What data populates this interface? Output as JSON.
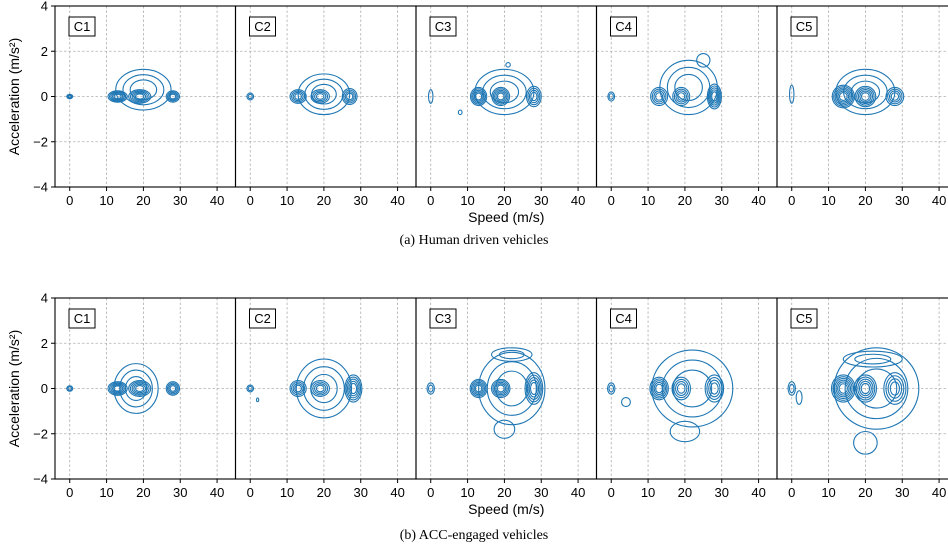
{
  "chart_data": {
    "type": "contour",
    "xlabel": "Speed (m/s)",
    "ylabel": "Acceleration (m/s²)",
    "xlim": [
      -4,
      45
    ],
    "ylim": [
      -4,
      4
    ],
    "xticks": [
      0,
      10,
      20,
      30,
      40
    ],
    "yticks": [
      -4,
      -2,
      0,
      2,
      4
    ],
    "grid": true,
    "line_color": "#1f77b4",
    "rows": [
      {
        "caption": "(a) Human driven vehicles",
        "panels": [
          {
            "label": "C1",
            "modes": [
              {
                "x": 0,
                "y": 0,
                "sx": 0.8,
                "sy": 0.1,
                "n": 3
              },
              {
                "x": 13,
                "y": 0,
                "sx": 2.6,
                "sy": 0.25,
                "n": 5
              },
              {
                "x": 19,
                "y": 0,
                "sx": 3.0,
                "sy": 0.3,
                "n": 5
              },
              {
                "x": 28,
                "y": 0,
                "sx": 1.8,
                "sy": 0.25,
                "n": 4
              },
              {
                "x": 20,
                "y": 0.3,
                "sx": 7.5,
                "sy": 0.9,
                "n": 3
              }
            ]
          },
          {
            "label": "C2",
            "modes": [
              {
                "x": 0,
                "y": 0,
                "sx": 0.9,
                "sy": 0.15,
                "n": 2
              },
              {
                "x": 13,
                "y": 0,
                "sx": 2.2,
                "sy": 0.3,
                "n": 4
              },
              {
                "x": 19,
                "y": 0,
                "sx": 2.5,
                "sy": 0.3,
                "n": 4
              },
              {
                "x": 27,
                "y": 0,
                "sx": 2.0,
                "sy": 0.35,
                "n": 4
              },
              {
                "x": 20,
                "y": 0.1,
                "sx": 7.0,
                "sy": 0.9,
                "n": 3
              }
            ]
          },
          {
            "label": "C3",
            "modes": [
              {
                "x": 0,
                "y": 0,
                "sx": 0.6,
                "sy": 0.3,
                "n": 1
              },
              {
                "x": 13,
                "y": 0,
                "sx": 2.2,
                "sy": 0.4,
                "n": 5
              },
              {
                "x": 19,
                "y": 0,
                "sx": 2.4,
                "sy": 0.4,
                "n": 5
              },
              {
                "x": 28,
                "y": 0,
                "sx": 2.0,
                "sy": 0.45,
                "n": 4
              },
              {
                "x": 20,
                "y": 0.2,
                "sx": 8.0,
                "sy": 1.0,
                "n": 3
              },
              {
                "x": 21,
                "y": 1.4,
                "sx": 0.6,
                "sy": 0.1,
                "n": 1
              },
              {
                "x": 8,
                "y": -0.7,
                "sx": 0.5,
                "sy": 0.1,
                "n": 1
              }
            ]
          },
          {
            "label": "C4",
            "modes": [
              {
                "x": 0,
                "y": 0,
                "sx": 0.9,
                "sy": 0.2,
                "n": 2
              },
              {
                "x": 13,
                "y": 0,
                "sx": 2.3,
                "sy": 0.4,
                "n": 4
              },
              {
                "x": 19,
                "y": 0,
                "sx": 2.3,
                "sy": 0.4,
                "n": 4
              },
              {
                "x": 28,
                "y": 0,
                "sx": 1.9,
                "sy": 0.55,
                "n": 5
              },
              {
                "x": 21,
                "y": 0.4,
                "sx": 7.8,
                "sy": 1.2,
                "n": 3
              },
              {
                "x": 25,
                "y": 1.6,
                "sx": 1.8,
                "sy": 0.3,
                "n": 1
              }
            ]
          },
          {
            "label": "C5",
            "modes": [
              {
                "x": 0,
                "y": 0.1,
                "sx": 0.6,
                "sy": 0.4,
                "n": 1
              },
              {
                "x": 14,
                "y": 0,
                "sx": 3.0,
                "sy": 0.5,
                "n": 6
              },
              {
                "x": 20,
                "y": 0,
                "sx": 2.8,
                "sy": 0.45,
                "n": 5
              },
              {
                "x": 28,
                "y": 0,
                "sx": 2.4,
                "sy": 0.4,
                "n": 4
              },
              {
                "x": 20,
                "y": 0.2,
                "sx": 8.0,
                "sy": 1.0,
                "n": 3
              }
            ]
          }
        ]
      },
      {
        "caption": "(b) ACC-engaged vehicles",
        "panels": [
          {
            "label": "C1",
            "modes": [
              {
                "x": 0,
                "y": 0,
                "sx": 0.8,
                "sy": 0.12,
                "n": 2
              },
              {
                "x": 13,
                "y": 0,
                "sx": 2.6,
                "sy": 0.3,
                "n": 5
              },
              {
                "x": 19,
                "y": 0,
                "sx": 3.0,
                "sy": 0.35,
                "n": 5
              },
              {
                "x": 28,
                "y": 0,
                "sx": 1.8,
                "sy": 0.3,
                "n": 4
              },
              {
                "x": 18,
                "y": 0.0,
                "sx": 6.0,
                "sy": 1.1,
                "n": 3
              }
            ]
          },
          {
            "label": "C2",
            "modes": [
              {
                "x": 0,
                "y": 0,
                "sx": 0.9,
                "sy": 0.15,
                "n": 2
              },
              {
                "x": 13,
                "y": 0,
                "sx": 2.2,
                "sy": 0.35,
                "n": 4
              },
              {
                "x": 19,
                "y": 0,
                "sx": 2.5,
                "sy": 0.35,
                "n": 4
              },
              {
                "x": 28,
                "y": 0,
                "sx": 2.3,
                "sy": 0.6,
                "n": 5
              },
              {
                "x": 20,
                "y": 0.0,
                "sx": 7.5,
                "sy": 1.3,
                "n": 3
              },
              {
                "x": 2,
                "y": -0.5,
                "sx": 0.3,
                "sy": 0.08,
                "n": 1
              }
            ]
          },
          {
            "label": "C3",
            "modes": [
              {
                "x": 0,
                "y": 0,
                "sx": 1.0,
                "sy": 0.25,
                "n": 2
              },
              {
                "x": 13,
                "y": 0,
                "sx": 2.3,
                "sy": 0.4,
                "n": 5
              },
              {
                "x": 19,
                "y": 0,
                "sx": 2.5,
                "sy": 0.4,
                "n": 5
              },
              {
                "x": 28,
                "y": 0,
                "sx": 2.4,
                "sy": 0.7,
                "n": 5
              },
              {
                "x": 22,
                "y": 0.0,
                "sx": 9.0,
                "sy": 1.6,
                "n": 3
              },
              {
                "x": 22,
                "y": 1.5,
                "sx": 5.5,
                "sy": 0.3,
                "n": 2
              },
              {
                "x": 20,
                "y": -1.8,
                "sx": 2.8,
                "sy": 0.4,
                "n": 1
              }
            ]
          },
          {
            "label": "C4",
            "modes": [
              {
                "x": 0,
                "y": 0,
                "sx": 1.0,
                "sy": 0.25,
                "n": 2
              },
              {
                "x": 13,
                "y": 0,
                "sx": 2.5,
                "sy": 0.5,
                "n": 5
              },
              {
                "x": 19,
                "y": 0,
                "sx": 2.5,
                "sy": 0.5,
                "n": 4
              },
              {
                "x": 28,
                "y": 0,
                "sx": 2.5,
                "sy": 0.6,
                "n": 4
              },
              {
                "x": 22,
                "y": 0.0,
                "sx": 11.0,
                "sy": 1.7,
                "n": 3
              },
              {
                "x": 20,
                "y": -1.9,
                "sx": 4.0,
                "sy": 0.45,
                "n": 1
              },
              {
                "x": 4,
                "y": -0.6,
                "sx": 1.2,
                "sy": 0.2,
                "n": 1
              }
            ]
          },
          {
            "label": "C5",
            "modes": [
              {
                "x": 0,
                "y": 0,
                "sx": 1.0,
                "sy": 0.3,
                "n": 2
              },
              {
                "x": 14,
                "y": 0,
                "sx": 3.2,
                "sy": 0.6,
                "n": 6
              },
              {
                "x": 20,
                "y": 0,
                "sx": 3.0,
                "sy": 0.6,
                "n": 5
              },
              {
                "x": 28,
                "y": 0,
                "sx": 3.0,
                "sy": 0.7,
                "n": 4
              },
              {
                "x": 23,
                "y": 0.0,
                "sx": 11.5,
                "sy": 1.8,
                "n": 3
              },
              {
                "x": 22,
                "y": 1.3,
                "sx": 8.0,
                "sy": 0.35,
                "n": 2
              },
              {
                "x": 20,
                "y": -2.4,
                "sx": 3.2,
                "sy": 0.5,
                "n": 1
              },
              {
                "x": 2,
                "y": -0.4,
                "sx": 0.8,
                "sy": 0.3,
                "n": 1
              }
            ]
          }
        ]
      }
    ]
  }
}
